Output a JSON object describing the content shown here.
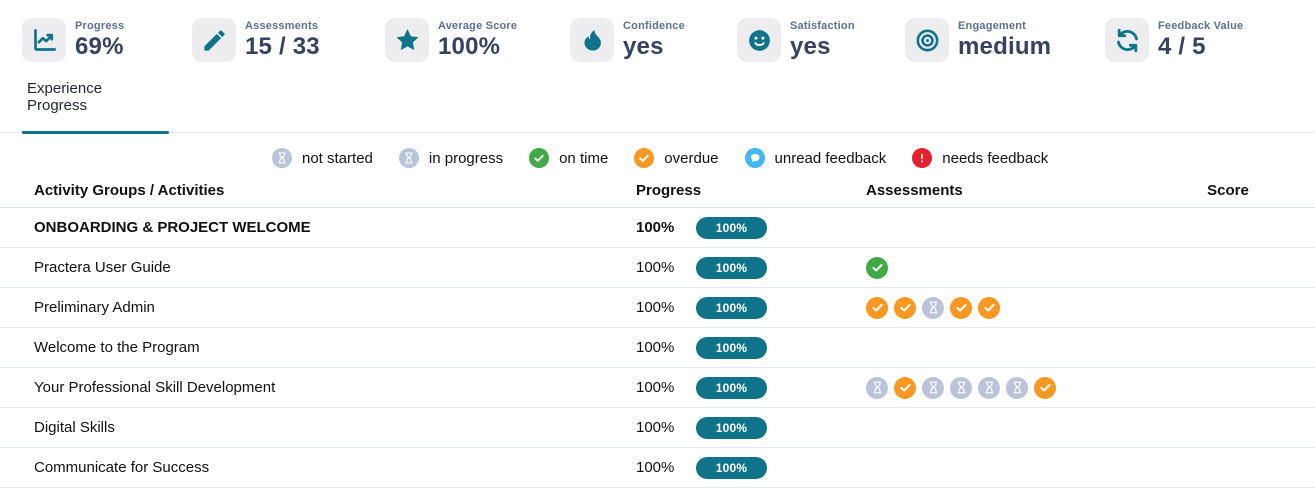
{
  "accent": "#0f7389",
  "status_colors": {
    "not-started": "#b9c3da",
    "in-progress": "#b9c3da",
    "on-time": "#41a948",
    "overdue": "#f79822",
    "unread-feedback": "#41b6f0",
    "needs-feedback": "#e4202c"
  },
  "stats": [
    {
      "label": "Progress",
      "value": "69%",
      "icon": "chart-line"
    },
    {
      "label": "Assessments",
      "value": "15 / 33",
      "icon": "pencil"
    },
    {
      "label": "Average Score",
      "value": "100%",
      "icon": "star"
    },
    {
      "label": "Confidence",
      "value": "yes",
      "icon": "droplet"
    },
    {
      "label": "Satisfaction",
      "value": "yes",
      "icon": "smiley"
    },
    {
      "label": "Engagement",
      "value": "medium",
      "icon": "bullseye"
    },
    {
      "label": "Feedback Value",
      "value": "4 / 5",
      "icon": "refresh"
    }
  ],
  "tabs": [
    {
      "label": "Experience Progress",
      "active": true
    }
  ],
  "legend": [
    {
      "label": "not started",
      "icon": "hourglass",
      "color": "#b9c3da"
    },
    {
      "label": "in progress",
      "icon": "hourglass",
      "color": "#b9c3da"
    },
    {
      "label": "on time",
      "icon": "check",
      "color": "#41a948"
    },
    {
      "label": "overdue",
      "icon": "check",
      "color": "#f79822"
    },
    {
      "label": "unread feedback",
      "icon": "chat",
      "color": "#41b6f0"
    },
    {
      "label": "needs feedback",
      "icon": "exclamation",
      "color": "#e4202c"
    }
  ],
  "table": {
    "columns": [
      "Activity Groups / Activities",
      "Progress",
      "Assessments",
      "Score"
    ],
    "rows": [
      {
        "name": "ONBOARDING & PROJECT WELCOME",
        "type": "group",
        "progress": "100%",
        "badge": "100%",
        "assessments": [],
        "score": ""
      },
      {
        "name": "Practera User Guide",
        "type": "activity",
        "progress": "100%",
        "badge": "100%",
        "assessments": [
          "on-time"
        ],
        "score": ""
      },
      {
        "name": "Preliminary Admin",
        "type": "activity",
        "progress": "100%",
        "badge": "100%",
        "assessments": [
          "overdue",
          "overdue",
          "not-started",
          "overdue",
          "overdue"
        ],
        "score": ""
      },
      {
        "name": "Welcome to the Program",
        "type": "activity",
        "progress": "100%",
        "badge": "100%",
        "assessments": [],
        "score": ""
      },
      {
        "name": "Your Professional Skill Development",
        "type": "activity",
        "progress": "100%",
        "badge": "100%",
        "assessments": [
          "not-started",
          "overdue",
          "not-started",
          "not-started",
          "not-started",
          "not-started",
          "overdue"
        ],
        "score": ""
      },
      {
        "name": "Digital Skills",
        "type": "activity",
        "progress": "100%",
        "badge": "100%",
        "assessments": [],
        "score": ""
      },
      {
        "name": "Communicate for Success",
        "type": "activity",
        "progress": "100%",
        "badge": "100%",
        "assessments": [],
        "score": ""
      }
    ]
  }
}
